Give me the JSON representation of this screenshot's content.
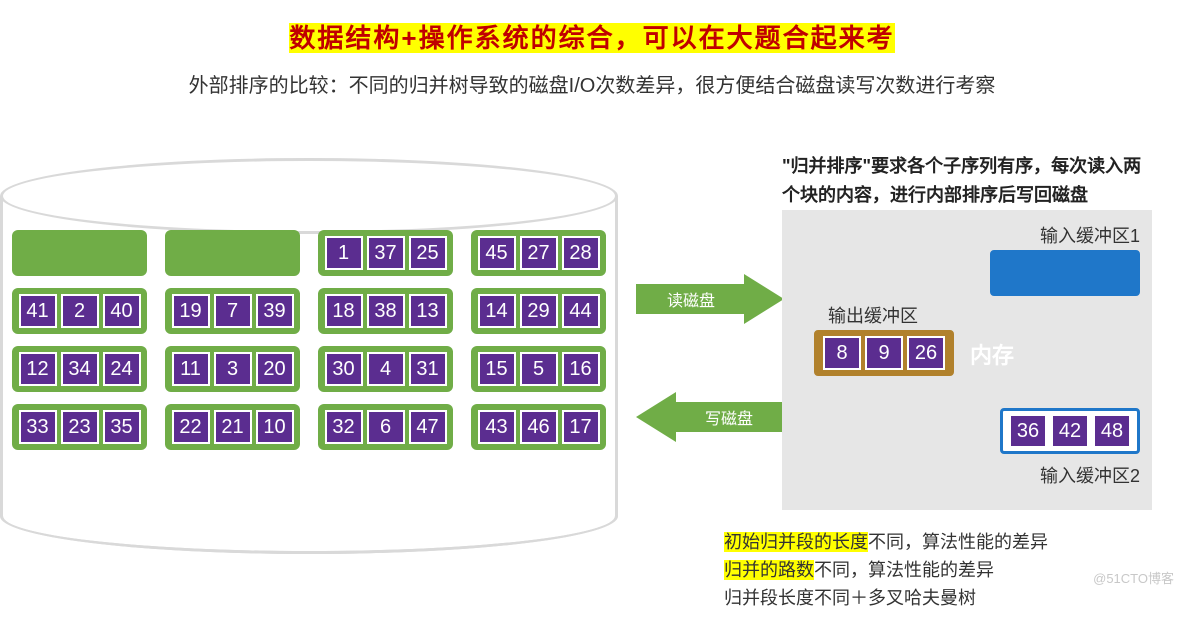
{
  "title": "数据结构+操作系统的综合，可以在大题合起来考",
  "subtitle": "外部排序的比较：不同的归并树导致的磁盘I/O次数差异，很方便结合磁盘读写次数进行考察",
  "mem_description": "\"归并排序\"要求各个子序列有序，每次读入两个块的内容，进行内部排序后写回磁盘",
  "arrows": {
    "read": "读磁盘",
    "write": "写磁盘",
    "color": "#70ad47"
  },
  "disk": {
    "border_color": "#d9d9d9",
    "block_color": "#70ad47",
    "cell_color": "#5b2d90",
    "blocks": [
      null,
      null,
      [
        "1",
        "37",
        "25"
      ],
      [
        "45",
        "27",
        "28"
      ],
      [
        "41",
        "2",
        "40"
      ],
      [
        "19",
        "7",
        "39"
      ],
      [
        "18",
        "38",
        "13"
      ],
      [
        "14",
        "29",
        "44"
      ],
      [
        "12",
        "34",
        "24"
      ],
      [
        "11",
        "3",
        "20"
      ],
      [
        "30",
        "4",
        "31"
      ],
      [
        "15",
        "5",
        "16"
      ],
      [
        "33",
        "23",
        "35"
      ],
      [
        "22",
        "21",
        "10"
      ],
      [
        "32",
        "6",
        "47"
      ],
      [
        "43",
        "46",
        "17"
      ]
    ]
  },
  "memory": {
    "panel_color": "#e6e6e6",
    "labels": {
      "in1": "输入缓冲区1",
      "in2": "输入缓冲区2",
      "out": "输出缓冲区",
      "mem": "内存"
    },
    "buffers": {
      "in1": {
        "color": "#1f77c9",
        "cells": []
      },
      "out": {
        "color": "#b1812c",
        "cells": [
          "8",
          "9",
          "26"
        ]
      },
      "in2": {
        "border": "#1f77c9",
        "cells": [
          "36",
          "42",
          "48"
        ]
      }
    }
  },
  "notes": {
    "l1a": "初始归并段的长度",
    "l1b": "不同，算法性能的差异",
    "l2a": "归并的路数",
    "l2b": "不同，算法性能的差异",
    "l3": "归并段长度不同＋多叉哈夫曼树"
  },
  "watermark": "@51CTO博客",
  "colors": {
    "highlight": "#ffff00",
    "title": "#c00000",
    "text": "#333333",
    "cell_bg": "#5b2d90",
    "cell_border": "#ffffff"
  }
}
